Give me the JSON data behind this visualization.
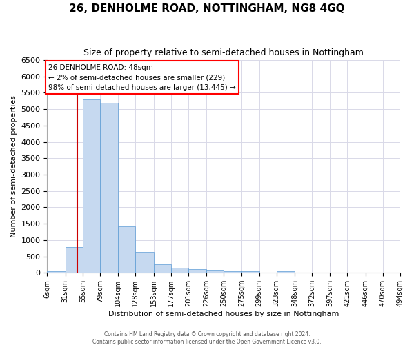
{
  "title": "26, DENHOLME ROAD, NOTTINGHAM, NG8 4GQ",
  "subtitle": "Size of property relative to semi-detached houses in Nottingham",
  "xlabel": "Distribution of semi-detached houses by size in Nottingham",
  "ylabel": "Number of semi-detached properties",
  "property_size": 48,
  "annotation_text_line1": "26 DENHOLME ROAD: 48sqm",
  "annotation_text_line2": "← 2% of semi-detached houses are smaller (229)",
  "annotation_text_line3": "98% of semi-detached houses are larger (13,445) →",
  "bin_edges": [
    6,
    31,
    55,
    79,
    104,
    128,
    153,
    177,
    201,
    226,
    250,
    275,
    299,
    323,
    348,
    372,
    397,
    421,
    446,
    470,
    494
  ],
  "bar_heights": [
    50,
    780,
    5300,
    5200,
    1410,
    630,
    260,
    145,
    105,
    65,
    50,
    40,
    0,
    55,
    0,
    0,
    0,
    0,
    0,
    0
  ],
  "bar_color": "#c6d9f0",
  "bar_edge_color": "#5b9bd5",
  "vline_color": "#cc0000",
  "vline_x": 48,
  "ylim": [
    0,
    6500
  ],
  "yticks": [
    0,
    500,
    1000,
    1500,
    2000,
    2500,
    3000,
    3500,
    4000,
    4500,
    5000,
    5500,
    6000,
    6500
  ],
  "grid_color": "#d9d9e8",
  "footer_line1": "Contains HM Land Registry data © Crown copyright and database right 2024.",
  "footer_line2": "Contains public sector information licensed under the Open Government Licence v3.0."
}
